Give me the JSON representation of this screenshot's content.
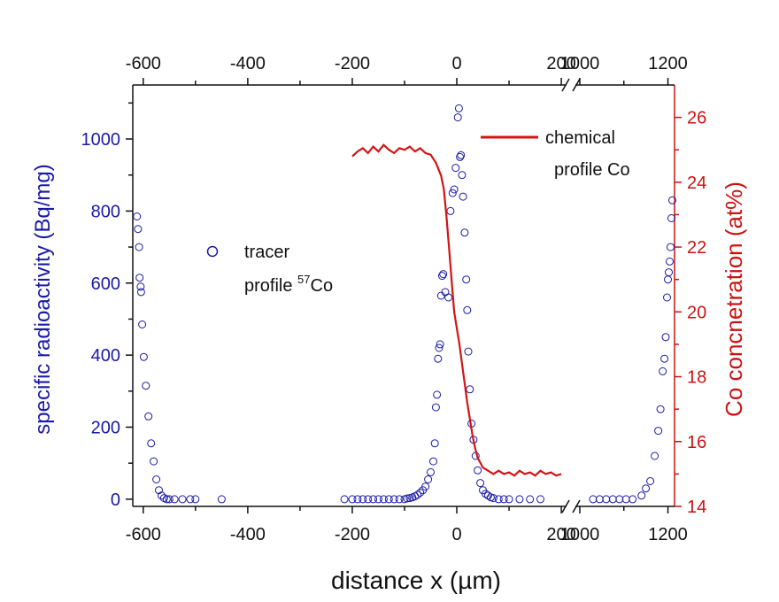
{
  "chart_data": {
    "type": "scatter",
    "xlabel": "distance x  (µm)",
    "ylabel_left": "specific radioactivity (Bq/mg)",
    "ylabel_right": "Co concnetration (at%)",
    "x_segments": [
      {
        "xlim": [
          -620,
          210
        ],
        "ticks": [
          -600,
          -400,
          -200,
          0,
          200
        ]
      },
      {
        "xlim": [
          990,
          1215
        ],
        "ticks": [
          1000,
          1200
        ]
      }
    ],
    "ylim_left": [
      -20,
      1150
    ],
    "yticks_left": [
      0,
      200,
      400,
      600,
      800,
      1000
    ],
    "ylim_right": [
      14,
      27
    ],
    "yticks_right": [
      14,
      16,
      18,
      20,
      22,
      24,
      26
    ],
    "legend": {
      "tracer_line1": "tracer",
      "tracer_line2": "profile ",
      "tracer_sup": "57",
      "tracer_suffix": "Co",
      "chemical_line1": "chemical",
      "chemical_line2": "profile Co"
    },
    "series": [
      {
        "name": "tracer profile 57Co",
        "marker": "open-circle",
        "color": "#1a1aa6",
        "axis": "left",
        "points": [
          [
            -612,
            785
          ],
          [
            -610,
            750
          ],
          [
            -608,
            700
          ],
          [
            -607,
            615
          ],
          [
            -605,
            590
          ],
          [
            -604,
            575
          ],
          [
            -602,
            485
          ],
          [
            -599,
            395
          ],
          [
            -595,
            315
          ],
          [
            -590,
            230
          ],
          [
            -585,
            155
          ],
          [
            -580,
            105
          ],
          [
            -575,
            55
          ],
          [
            -570,
            25
          ],
          [
            -565,
            10
          ],
          [
            -560,
            3
          ],
          [
            -555,
            0
          ],
          [
            -550,
            0
          ],
          [
            -540,
            0
          ],
          [
            -525,
            0
          ],
          [
            -510,
            0
          ],
          [
            -500,
            0
          ],
          [
            -450,
            0
          ],
          [
            -215,
            0
          ],
          [
            -200,
            0
          ],
          [
            -190,
            0
          ],
          [
            -180,
            0
          ],
          [
            -170,
            0
          ],
          [
            -160,
            0
          ],
          [
            -150,
            0
          ],
          [
            -140,
            0
          ],
          [
            -130,
            0
          ],
          [
            -120,
            0
          ],
          [
            -110,
            0
          ],
          [
            -100,
            0
          ],
          [
            -95,
            2
          ],
          [
            -90,
            3
          ],
          [
            -85,
            5
          ],
          [
            -80,
            8
          ],
          [
            -75,
            12
          ],
          [
            -70,
            18
          ],
          [
            -65,
            25
          ],
          [
            -60,
            35
          ],
          [
            -55,
            55
          ],
          [
            -50,
            75
          ],
          [
            -45,
            105
          ],
          [
            -42,
            155
          ],
          [
            -40,
            255
          ],
          [
            -38,
            290
          ],
          [
            -36,
            390
          ],
          [
            -34,
            420
          ],
          [
            -32,
            430
          ],
          [
            -30,
            565
          ],
          [
            -28,
            620
          ],
          [
            -26,
            625
          ],
          [
            -22,
            575
          ],
          [
            -16,
            560
          ],
          [
            -12,
            800
          ],
          [
            -8,
            850
          ],
          [
            -5,
            860
          ],
          [
            -2,
            920
          ],
          [
            2,
            1060
          ],
          [
            4,
            1085
          ],
          [
            6,
            950
          ],
          [
            8,
            955
          ],
          [
            10,
            900
          ],
          [
            12,
            840
          ],
          [
            15,
            740
          ],
          [
            18,
            610
          ],
          [
            20,
            525
          ],
          [
            22,
            410
          ],
          [
            25,
            305
          ],
          [
            28,
            210
          ],
          [
            32,
            165
          ],
          [
            36,
            120
          ],
          [
            40,
            80
          ],
          [
            45,
            45
          ],
          [
            50,
            25
          ],
          [
            55,
            15
          ],
          [
            60,
            10
          ],
          [
            65,
            5
          ],
          [
            70,
            3
          ],
          [
            80,
            0
          ],
          [
            90,
            0
          ],
          [
            100,
            0
          ],
          [
            120,
            0
          ],
          [
            140,
            0
          ],
          [
            160,
            0
          ],
          [
            1030,
            0
          ],
          [
            1045,
            0
          ],
          [
            1060,
            0
          ],
          [
            1075,
            0
          ],
          [
            1090,
            0
          ],
          [
            1105,
            0
          ],
          [
            1120,
            0
          ],
          [
            1140,
            10
          ],
          [
            1150,
            30
          ],
          [
            1160,
            50
          ],
          [
            1170,
            120
          ],
          [
            1178,
            190
          ],
          [
            1183,
            250
          ],
          [
            1188,
            355
          ],
          [
            1192,
            390
          ],
          [
            1195,
            450
          ],
          [
            1198,
            560
          ],
          [
            1200,
            610
          ],
          [
            1202,
            630
          ],
          [
            1204,
            660
          ],
          [
            1206,
            700
          ],
          [
            1208,
            780
          ],
          [
            1210,
            830
          ]
        ]
      },
      {
        "name": "chemical profile Co",
        "style": "line",
        "color": "#d21414",
        "axis": "right",
        "points": [
          [
            -200,
            24.8
          ],
          [
            -190,
            24.95
          ],
          [
            -180,
            25.05
          ],
          [
            -170,
            24.9
          ],
          [
            -160,
            25.1
          ],
          [
            -150,
            24.95
          ],
          [
            -140,
            25.15
          ],
          [
            -130,
            25.0
          ],
          [
            -120,
            24.9
          ],
          [
            -110,
            25.05
          ],
          [
            -100,
            25.0
          ],
          [
            -90,
            25.1
          ],
          [
            -80,
            24.95
          ],
          [
            -70,
            25.05
          ],
          [
            -60,
            24.9
          ],
          [
            -50,
            24.85
          ],
          [
            -40,
            24.6
          ],
          [
            -30,
            24.2
          ],
          [
            -25,
            23.8
          ],
          [
            -20,
            23.0
          ],
          [
            -15,
            22.0
          ],
          [
            -10,
            21.0
          ],
          [
            -5,
            20.0
          ],
          [
            0,
            19.5
          ],
          [
            5,
            19.0
          ],
          [
            10,
            18.4
          ],
          [
            15,
            17.8
          ],
          [
            20,
            17.2
          ],
          [
            25,
            16.7
          ],
          [
            30,
            16.2
          ],
          [
            35,
            15.8
          ],
          [
            40,
            15.5
          ],
          [
            50,
            15.2
          ],
          [
            60,
            15.1
          ],
          [
            70,
            15.0
          ],
          [
            80,
            15.1
          ],
          [
            90,
            15.0
          ],
          [
            100,
            15.05
          ],
          [
            110,
            14.95
          ],
          [
            120,
            15.1
          ],
          [
            130,
            15.0
          ],
          [
            140,
            15.05
          ],
          [
            150,
            14.95
          ],
          [
            160,
            15.1
          ],
          [
            170,
            15.0
          ],
          [
            180,
            15.05
          ],
          [
            190,
            14.95
          ],
          [
            200,
            15.0
          ]
        ]
      }
    ]
  }
}
